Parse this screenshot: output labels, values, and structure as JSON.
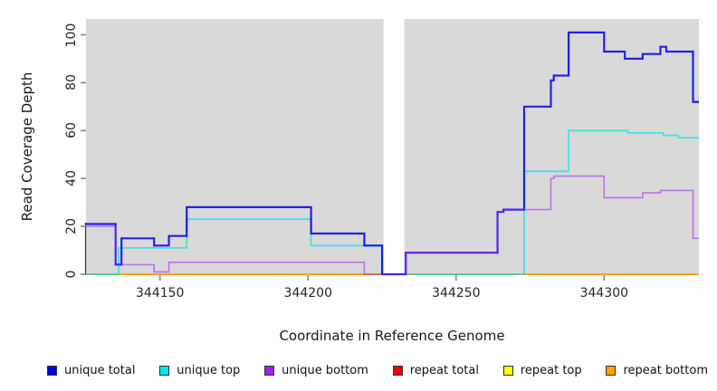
{
  "chart_data": {
    "type": "line",
    "subtype": "step",
    "title": "",
    "xlabel": "Coordinate in Reference Genome",
    "ylabel": "Read Coverage Depth",
    "xlim": [
      344125,
      344332
    ],
    "ylim": [
      0,
      106.5
    ],
    "x_ticks": [
      344150,
      344200,
      344250,
      344300
    ],
    "y_ticks": [
      0,
      20,
      40,
      60,
      80,
      100
    ],
    "grid": false,
    "legend_position": "bottom",
    "plot_background": "#D9D9D9",
    "figure_background": "#FFFFFF",
    "masked_region": {
      "x_from": 344225.5,
      "x_to": 344232.5,
      "fill": "#FFFFFF"
    },
    "series": [
      {
        "name": "unique total",
        "color": "#0000EE",
        "opacity": 0.85,
        "width": 2.2,
        "z": 5,
        "points": [
          [
            344125,
            21
          ],
          [
            344135,
            4
          ],
          [
            344137,
            15
          ],
          [
            344148,
            12
          ],
          [
            344153,
            16
          ],
          [
            344159,
            28
          ],
          [
            344201,
            17
          ],
          [
            344219,
            12
          ],
          [
            344225,
            0
          ],
          [
            344233,
            9
          ],
          [
            344264,
            26
          ],
          [
            344266,
            27
          ],
          [
            344273,
            70
          ],
          [
            344282,
            81
          ],
          [
            344283,
            83
          ],
          [
            344288,
            101
          ],
          [
            344300,
            93
          ],
          [
            344307,
            90
          ],
          [
            344313,
            92
          ],
          [
            344319,
            95
          ],
          [
            344321,
            93
          ],
          [
            344330,
            72
          ]
        ]
      },
      {
        "name": "unique top",
        "color": "#00E5EE",
        "opacity": 0.7,
        "width": 1.8,
        "z": 4,
        "points": [
          [
            344125,
            0
          ],
          [
            344136,
            11
          ],
          [
            344159,
            23
          ],
          [
            344201,
            12
          ],
          [
            344225,
            0
          ],
          [
            344273,
            43
          ],
          [
            344288,
            60
          ],
          [
            344308,
            59
          ],
          [
            344320,
            58
          ],
          [
            344325,
            57
          ]
        ]
      },
      {
        "name": "unique bottom",
        "color": "#A020F0",
        "opacity": 0.55,
        "width": 1.6,
        "z": 6,
        "points": [
          [
            344125,
            20
          ],
          [
            344135,
            4
          ],
          [
            344148,
            1
          ],
          [
            344153,
            5
          ],
          [
            344219,
            0
          ],
          [
            344233,
            9
          ],
          [
            344264,
            26
          ],
          [
            344266,
            27
          ],
          [
            344282,
            40
          ],
          [
            344283,
            41
          ],
          [
            344300,
            32
          ],
          [
            344313,
            34
          ],
          [
            344319,
            35
          ],
          [
            344330,
            15
          ]
        ]
      },
      {
        "name": "repeat total",
        "color": "#EE0000",
        "opacity": 1,
        "width": 1.5,
        "z": 1,
        "points": [
          [
            344125,
            0
          ]
        ],
        "breaks": [
          [
            344225.5,
            344232.5
          ]
        ]
      },
      {
        "name": "repeat top",
        "color": "#FFFF00",
        "opacity": 1,
        "width": 1.5,
        "z": 2,
        "points": [
          [
            344125,
            0
          ]
        ],
        "breaks": [
          [
            344225.5,
            344232.5
          ]
        ]
      },
      {
        "name": "repeat bottom",
        "color": "#FFA500",
        "opacity": 1,
        "width": 2,
        "z": 3,
        "points": [
          [
            344125,
            0
          ]
        ],
        "breaks": [
          [
            344225.5,
            344232.5
          ]
        ]
      }
    ]
  },
  "legend": {
    "items": [
      {
        "label": "unique total",
        "color": "#0000EE"
      },
      {
        "label": "unique top",
        "color": "#00E5EE"
      },
      {
        "label": "unique bottom",
        "color": "#A020F0"
      },
      {
        "label": "repeat total",
        "color": "#EE0000"
      },
      {
        "label": "repeat top",
        "color": "#FFFF00"
      },
      {
        "label": "repeat bottom",
        "color": "#FFA500"
      }
    ]
  }
}
